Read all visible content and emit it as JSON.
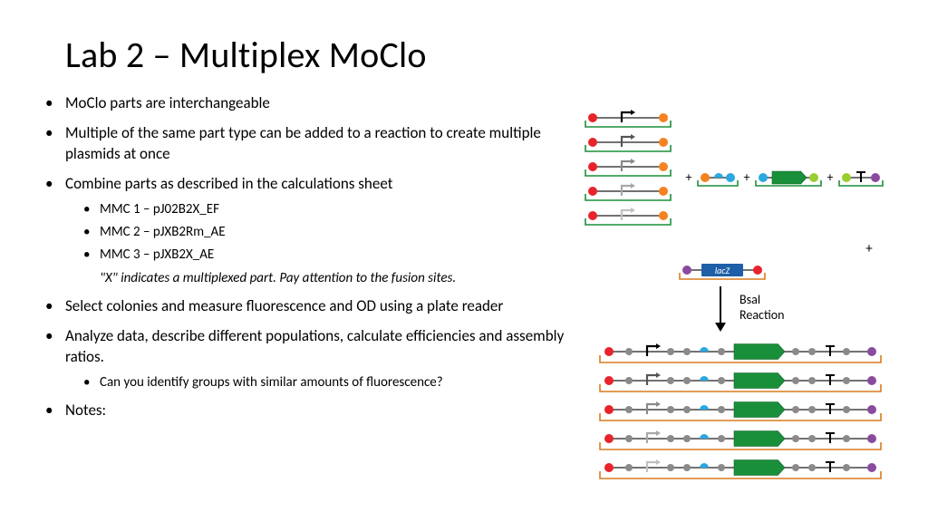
{
  "title": "Lab 2 – Multiplex MoClo",
  "bullets": {
    "b1": "MoClo parts are interchangeable",
    "b2": "Multiple of the same part type can be added to a reaction to create multiple plasmids at once",
    "b3": "Combine parts as described in the calculations sheet",
    "b3_sub": {
      "s1": "MMC 1 – pJ02B2X_EF",
      "s2": "MMC 2 – pJXB2Rm_AE",
      "s3": "MMC 3 – pJXB2X_AE",
      "s4": "\"X\" indicates a multiplexed part. Pay attention to the fusion sites."
    },
    "b4": "Select colonies and measure fluorescence and OD using a plate reader",
    "b5": "Analyze data, describe different populations, calculate efficiencies and assembly ratios.",
    "b5_sub": {
      "s1": "Can you identify groups with similar amounts of fluorescence?"
    },
    "b6": "Notes:"
  },
  "diagram": {
    "plus": "+",
    "lacz_label": "lacZ",
    "reaction_label": "BsaI\nReaction",
    "colors": {
      "red": "#e8232a",
      "orange": "#f58220",
      "purple": "#8a4b9e",
      "grey": "#8a8a8a",
      "darkgrey": "#555555",
      "green": "#1a8f3a",
      "lime": "#9acd32",
      "skyblue": "#2aa8e0",
      "blue": "#1e5fa8",
      "black": "#000000",
      "outline_green": "#1a8f3a",
      "outline_orange": "#d87b1f",
      "line": "#444444"
    },
    "stack1_promoter_colors": [
      "#000000",
      "#555555",
      "#8a8a8a",
      "#a8a8a8",
      "#c0c0c0"
    ],
    "stack2_promoter_colors": [
      "#000000",
      "#555555",
      "#8a8a8a",
      "#a8a8a8",
      "#c0c0c0"
    ]
  }
}
